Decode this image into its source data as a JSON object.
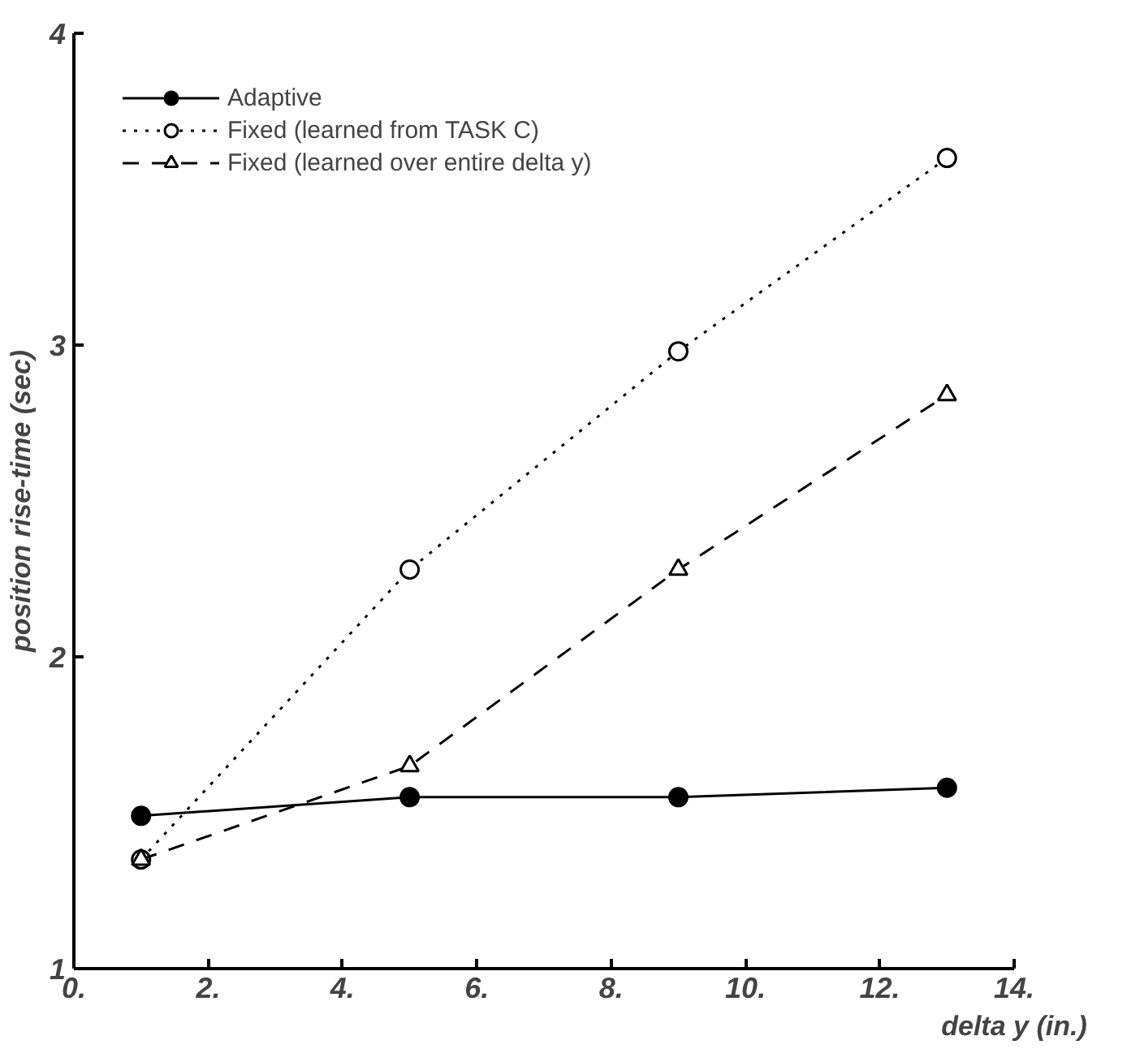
{
  "chart_data": {
    "type": "line",
    "xlabel": "delta y (in.)",
    "ylabel": "position rise-time (sec)",
    "x": [
      1,
      5,
      9,
      13
    ],
    "series": [
      {
        "name": "Adaptive",
        "color": "#000000",
        "values": [
          1.49,
          1.55,
          1.55,
          1.58
        ],
        "marker": "circle",
        "line_style": "solid"
      },
      {
        "name": "Fixed (learned from TASK C)",
        "color": "#000000",
        "values": [
          1.35,
          2.28,
          2.98,
          3.6
        ],
        "marker": "circle",
        "line_style": "dotted"
      },
      {
        "name": "Fixed (learned over entire delta y)",
        "color": "#000000",
        "values": [
          1.35,
          1.65,
          2.28,
          2.84
        ],
        "marker": "triangle",
        "line_style": "dashed"
      }
    ],
    "xlim": [
      0,
      14
    ],
    "ylim": [
      1,
      4
    ],
    "xticks": [
      {
        "value": 0,
        "label": "0."
      },
      {
        "value": 2,
        "label": "2."
      },
      {
        "value": 4,
        "label": "4."
      },
      {
        "value": 6,
        "label": "6."
      },
      {
        "value": 8,
        "label": "8."
      },
      {
        "value": 10,
        "label": "10."
      },
      {
        "value": 12,
        "label": "12."
      },
      {
        "value": 14,
        "label": "14."
      }
    ],
    "yticks": [
      1,
      2,
      3,
      4
    ],
    "grid": false,
    "legend": "top left"
  }
}
